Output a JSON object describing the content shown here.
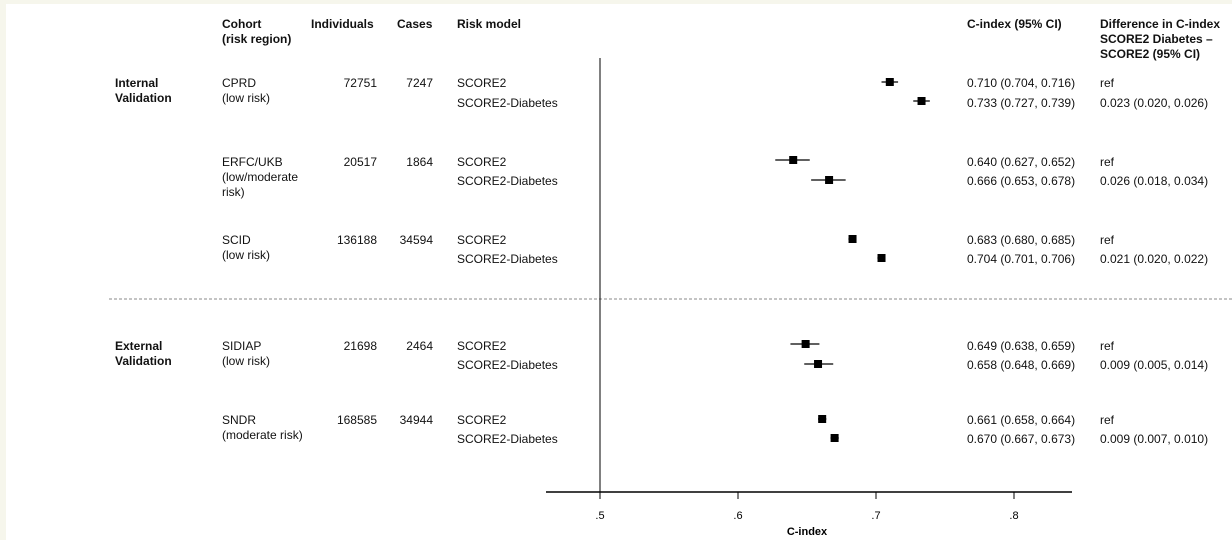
{
  "headers": {
    "cohort": "Cohort",
    "cohort_sub": "(risk region)",
    "individuals": "Individuals",
    "cases": "Cases",
    "risk_model": "Risk model",
    "cindex": "C-index (95% CI)",
    "diff_1": "Difference in C-index",
    "diff_2": "SCORE2 Diabetes –",
    "diff_3": "SCORE2 (95% CI)"
  },
  "groups": [
    {
      "line1": "Internal",
      "line2": "Validation"
    },
    {
      "line1": "External",
      "line2": "Validation"
    }
  ],
  "cohorts": [
    {
      "name": "CPRD",
      "region_1": "(low risk)",
      "region_2": "",
      "individuals": "72751",
      "cases": "7247",
      "rows": [
        {
          "model": "SCORE2",
          "ci_text": "0.710 (0.704, 0.716)",
          "diff": "ref"
        },
        {
          "model": "SCORE2-Diabetes",
          "ci_text": "0.733 (0.727, 0.739)",
          "diff": "0.023 (0.020, 0.026)"
        }
      ]
    },
    {
      "name": "ERFC/UKB",
      "region_1": "(low/moderate",
      "region_2": "risk)",
      "individuals": "20517",
      "cases": "1864",
      "rows": [
        {
          "model": "SCORE2",
          "ci_text": "0.640 (0.627, 0.652)",
          "diff": "ref"
        },
        {
          "model": "SCORE2-Diabetes",
          "ci_text": "0.666 (0.653, 0.678)",
          "diff": "0.026 (0.018, 0.034)"
        }
      ]
    },
    {
      "name": "SCID",
      "region_1": "(low risk)",
      "region_2": "",
      "individuals": "136188",
      "cases": "34594",
      "rows": [
        {
          "model": "SCORE2",
          "ci_text": "0.683 (0.680, 0.685)",
          "diff": "ref"
        },
        {
          "model": "SCORE2-Diabetes",
          "ci_text": "0.704 (0.701, 0.706)",
          "diff": "0.021 (0.020, 0.022)"
        }
      ]
    },
    {
      "name": "SIDIAP",
      "region_1": "(low risk)",
      "region_2": "",
      "individuals": "21698",
      "cases": "2464",
      "rows": [
        {
          "model": "SCORE2",
          "ci_text": "0.649 (0.638, 0.659)",
          "diff": "ref"
        },
        {
          "model": "SCORE2-Diabetes",
          "ci_text": "0.658 (0.648, 0.669)",
          "diff": "0.009 (0.005, 0.014)"
        }
      ]
    },
    {
      "name": "SNDR",
      "region_1": "(moderate risk)",
      "region_2": "",
      "individuals": "168585",
      "cases": "34944",
      "rows": [
        {
          "model": "SCORE2",
          "ci_text": "0.661 (0.658, 0.664)",
          "diff": "ref"
        },
        {
          "model": "SCORE2-Diabetes",
          "ci_text": "0.670 (0.667, 0.673)",
          "diff": "0.009 (0.007, 0.010)"
        }
      ]
    }
  ],
  "chart_data": {
    "type": "forest",
    "xlabel": "C-index",
    "xlim": [
      0.46,
      0.84
    ],
    "reference_line": 0.5,
    "ticks": [
      0.5,
      0.6,
      0.7,
      0.8
    ],
    "tick_labels": [
      ".5",
      ".6",
      ".7",
      ".8"
    ],
    "series": [
      {
        "cohort": "CPRD",
        "model": "SCORE2",
        "estimate": 0.71,
        "lower": 0.704,
        "upper": 0.716
      },
      {
        "cohort": "CPRD",
        "model": "SCORE2-Diabetes",
        "estimate": 0.733,
        "lower": 0.727,
        "upper": 0.739
      },
      {
        "cohort": "ERFC/UKB",
        "model": "SCORE2",
        "estimate": 0.64,
        "lower": 0.627,
        "upper": 0.652
      },
      {
        "cohort": "ERFC/UKB",
        "model": "SCORE2-Diabetes",
        "estimate": 0.666,
        "lower": 0.653,
        "upper": 0.678
      },
      {
        "cohort": "SCID",
        "model": "SCORE2",
        "estimate": 0.683,
        "lower": 0.68,
        "upper": 0.685
      },
      {
        "cohort": "SCID",
        "model": "SCORE2-Diabetes",
        "estimate": 0.704,
        "lower": 0.701,
        "upper": 0.706
      },
      {
        "cohort": "SIDIAP",
        "model": "SCORE2",
        "estimate": 0.649,
        "lower": 0.638,
        "upper": 0.659
      },
      {
        "cohort": "SIDIAP",
        "model": "SCORE2-Diabetes",
        "estimate": 0.658,
        "lower": 0.648,
        "upper": 0.669
      },
      {
        "cohort": "SNDR",
        "model": "SCORE2",
        "estimate": 0.661,
        "lower": 0.658,
        "upper": 0.664
      },
      {
        "cohort": "SNDR",
        "model": "SCORE2-Diabetes",
        "estimate": 0.67,
        "lower": 0.667,
        "upper": 0.673
      }
    ],
    "colors": {
      "marker": "#000000",
      "divider": "#8a8a8a"
    }
  }
}
